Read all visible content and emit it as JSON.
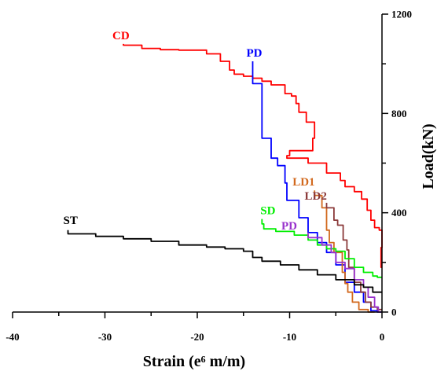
{
  "chart_data": {
    "type": "line",
    "xlabel": "Strain (e⁶ m/m)",
    "ylabel": "Load(kN)",
    "xlim": [
      -40,
      0
    ],
    "ylim": [
      0,
      1200
    ],
    "x_ticks": [
      -40,
      -30,
      -20,
      -10,
      0
    ],
    "y_ticks": [
      0,
      400,
      800,
      1200
    ],
    "y_axis_side": "right",
    "grid": false,
    "series": [
      {
        "name": "CD",
        "color": "#ff0000",
        "points": [
          [
            -28,
            1080
          ],
          [
            -26,
            1075
          ],
          [
            -24,
            1062
          ],
          [
            -22,
            1057
          ],
          [
            -19,
            1055
          ],
          [
            -17.5,
            1040
          ],
          [
            -16.5,
            1010
          ],
          [
            -16,
            975
          ],
          [
            -15,
            958
          ],
          [
            -14,
            950
          ],
          [
            -13,
            942
          ],
          [
            -12,
            930
          ],
          [
            -10.5,
            915
          ],
          [
            -9.8,
            880
          ],
          [
            -9.3,
            870
          ],
          [
            -9,
            840
          ],
          [
            -8.2,
            805
          ],
          [
            -7.3,
            765
          ],
          [
            -7.5,
            700
          ],
          [
            -10,
            650
          ],
          [
            -10.3,
            630
          ],
          [
            -8,
            620
          ],
          [
            -6,
            600
          ],
          [
            -4.5,
            560
          ],
          [
            -4,
            530
          ],
          [
            -3,
            505
          ],
          [
            -2.2,
            485
          ],
          [
            -1.6,
            455
          ],
          [
            -1.2,
            410
          ],
          [
            -0.8,
            370
          ],
          [
            -0.3,
            340
          ],
          [
            0,
            330
          ],
          [
            -0.1,
            260
          ],
          [
            0,
            180
          ]
        ]
      },
      {
        "name": "PD",
        "color": "#0000ff",
        "points": [
          [
            -14,
            1010
          ],
          [
            -14,
            935
          ],
          [
            -13,
            920
          ],
          [
            -13,
            730
          ],
          [
            -12,
            700
          ],
          [
            -11.3,
            620
          ],
          [
            -10.5,
            590
          ],
          [
            -10.3,
            520
          ],
          [
            -9,
            450
          ],
          [
            -8,
            380
          ],
          [
            -7,
            320
          ],
          [
            -6,
            280
          ],
          [
            -5,
            240
          ],
          [
            -4,
            190
          ],
          [
            -3,
            120
          ],
          [
            -2,
            80
          ],
          [
            -1.2,
            40
          ],
          [
            -0.5,
            5
          ],
          [
            0,
            0
          ]
        ]
      },
      {
        "name": "LD1",
        "color": "#d2691e",
        "points": [
          [
            -7.3,
            490
          ],
          [
            -6.5,
            470
          ],
          [
            -6,
            420
          ],
          [
            -5.7,
            330
          ],
          [
            -5.2,
            280
          ],
          [
            -4.3,
            240
          ],
          [
            -4,
            160
          ],
          [
            -3.7,
            115
          ],
          [
            -3.2,
            80
          ],
          [
            -2.5,
            40
          ],
          [
            -1.5,
            10
          ],
          [
            -0.8,
            0
          ]
        ]
      },
      {
        "name": "LD2",
        "color": "#8b3a3a",
        "points": [
          [
            -6,
            440
          ],
          [
            -5.2,
            420
          ],
          [
            -4.8,
            370
          ],
          [
            -4.2,
            350
          ],
          [
            -3.8,
            290
          ],
          [
            -3.6,
            250
          ],
          [
            -3,
            180
          ],
          [
            -2.3,
            120
          ],
          [
            -1.8,
            80
          ],
          [
            -1.2,
            40
          ],
          [
            -0.5,
            20
          ],
          [
            0,
            10
          ]
        ]
      },
      {
        "name": "SD",
        "color": "#00ee00",
        "points": [
          [
            -13,
            375
          ],
          [
            -12.8,
            355
          ],
          [
            -11.5,
            335
          ],
          [
            -9.5,
            325
          ],
          [
            -8,
            310
          ],
          [
            -7,
            290
          ],
          [
            -6,
            270
          ],
          [
            -5,
            255
          ],
          [
            -4,
            245
          ],
          [
            -3,
            215
          ],
          [
            -2,
            180
          ],
          [
            -1,
            160
          ],
          [
            -0.5,
            145
          ],
          [
            0,
            140
          ]
        ]
      },
      {
        "name": "PD",
        "color": "#9932cc",
        "points": [
          [
            -8,
            320
          ],
          [
            -6.5,
            300
          ],
          [
            -5.5,
            270
          ],
          [
            -5,
            240
          ],
          [
            -4,
            200
          ],
          [
            -3,
            175
          ],
          [
            -2,
            130
          ],
          [
            -1.5,
            100
          ],
          [
            -0.8,
            60
          ],
          [
            -0.4,
            20
          ],
          [
            0,
            0
          ]
        ]
      },
      {
        "name": "ST",
        "color": "#000000",
        "points": [
          [
            -34,
            330
          ],
          [
            -31,
            315
          ],
          [
            -28,
            305
          ],
          [
            -25,
            295
          ],
          [
            -22,
            285
          ],
          [
            -19,
            270
          ],
          [
            -17,
            262
          ],
          [
            -15,
            255
          ],
          [
            -14,
            245
          ],
          [
            -14,
            225
          ],
          [
            -13,
            220
          ],
          [
            -11,
            205
          ],
          [
            -9,
            190
          ],
          [
            -7,
            170
          ],
          [
            -5,
            150
          ],
          [
            -3,
            130
          ],
          [
            -2,
            110
          ],
          [
            -1,
            100
          ],
          [
            0,
            80
          ]
        ]
      }
    ]
  }
}
